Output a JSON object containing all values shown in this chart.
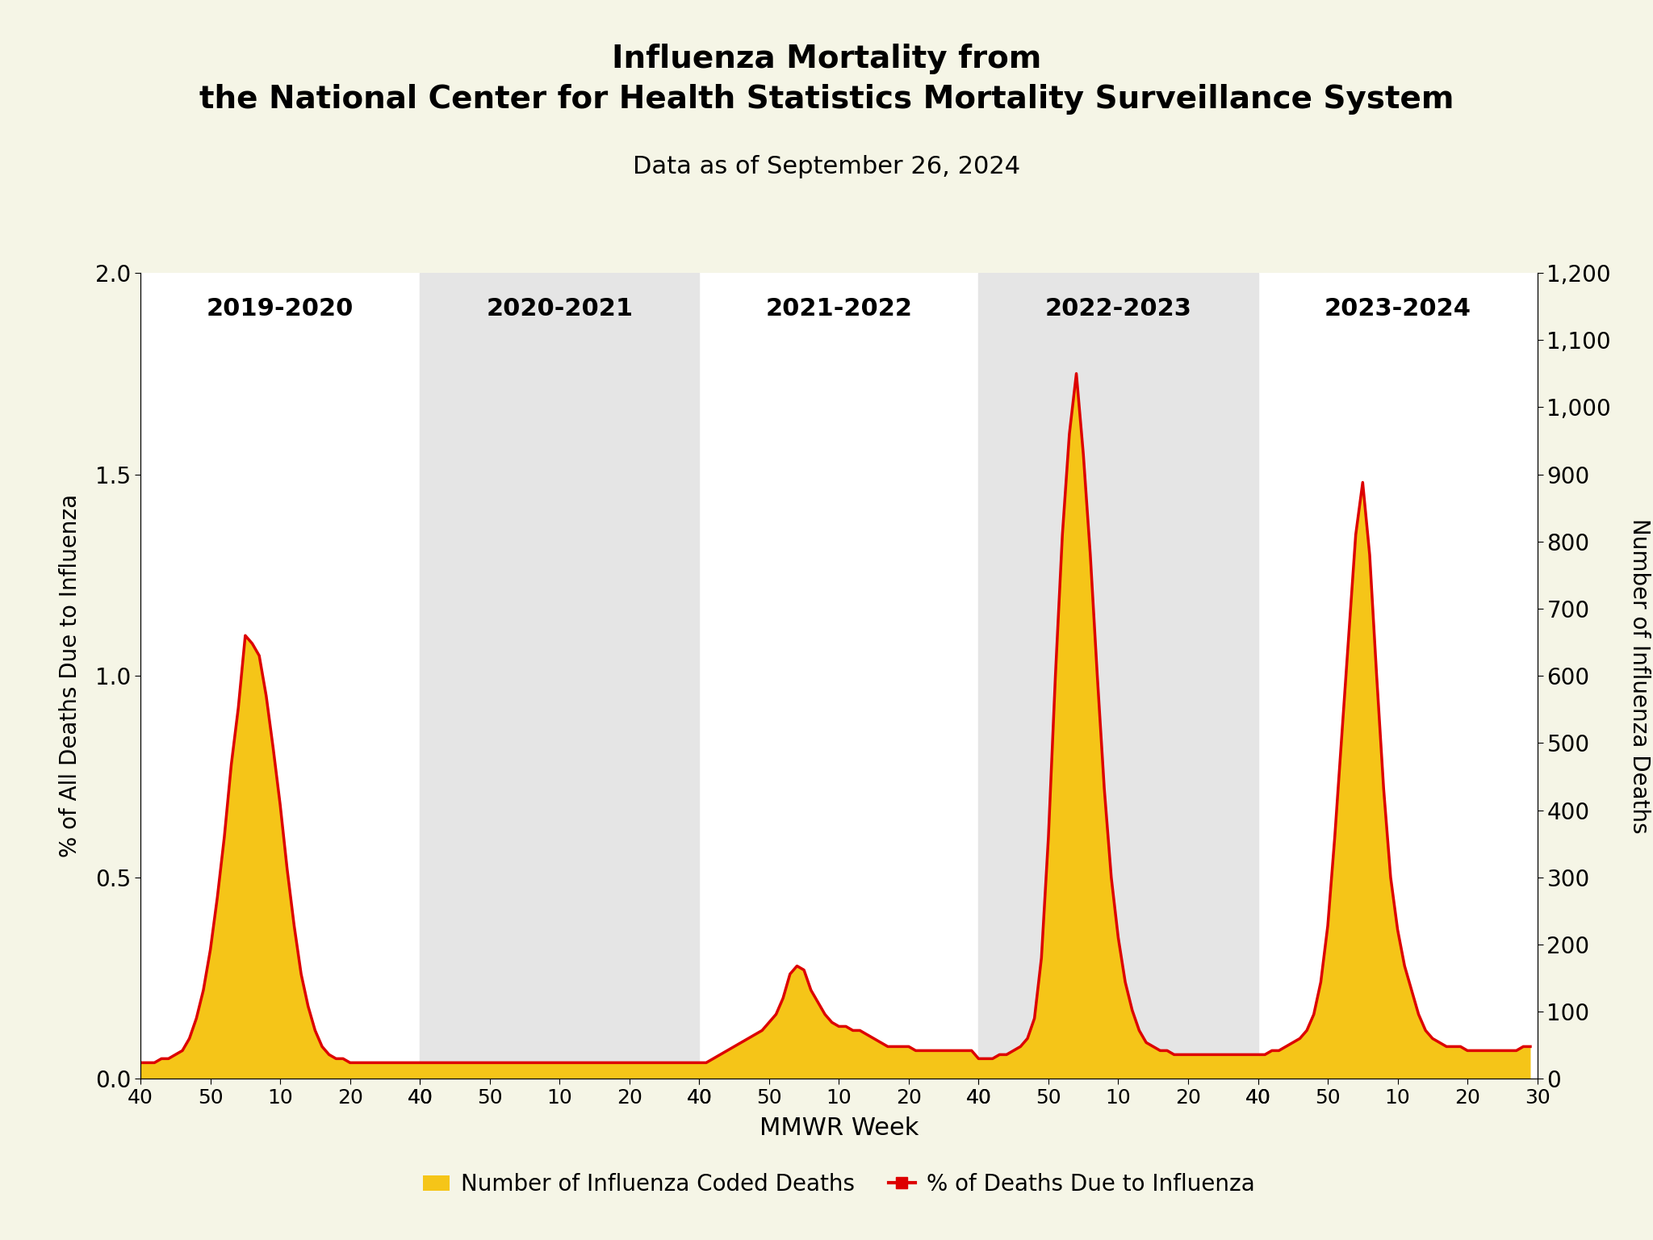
{
  "title": "Influenza Mortality from\nthe National Center for Health Statistics Mortality Surveillance System",
  "subtitle": "Data as of September 26, 2024",
  "xlabel": "MMWR Week",
  "ylabel_left": "% of All Deaths Due to Influenza",
  "ylabel_right": "Number of Influenza Deaths",
  "ylim_left": [
    0.0,
    2.0
  ],
  "ylim_right": [
    0,
    1200
  ],
  "yticks_left": [
    0.0,
    0.5,
    1.0,
    1.5,
    2.0
  ],
  "yticks_right": [
    0,
    100,
    200,
    300,
    400,
    500,
    600,
    700,
    800,
    900,
    1000,
    1100,
    1200
  ],
  "background_color": "#f5f5e6",
  "plot_bg_color": "#ffffff",
  "seasons": [
    "2019-2020",
    "2020-2021",
    "2021-2022",
    "2022-2023",
    "2023-2024"
  ],
  "season_shade": [
    false,
    true,
    false,
    true,
    false
  ],
  "shade_color": "#e5e5e5",
  "bar_color": "#f5c518",
  "line_color": "#dd0000",
  "line_width": 2.5,
  "xtick_labels": [
    "40",
    "50",
    "10",
    "20",
    "30"
  ],
  "weeks_per_season": 40,
  "pct_data": [
    0.04,
    0.04,
    0.04,
    0.05,
    0.05,
    0.06,
    0.07,
    0.1,
    0.15,
    0.22,
    0.32,
    0.45,
    0.6,
    0.78,
    0.92,
    1.1,
    1.08,
    1.05,
    0.95,
    0.82,
    0.68,
    0.52,
    0.38,
    0.26,
    0.18,
    0.12,
    0.08,
    0.06,
    0.05,
    0.05,
    0.04,
    0.04,
    0.04,
    0.04,
    0.04,
    0.04,
    0.04,
    0.04,
    0.04,
    0.04,
    0.04,
    0.04,
    0.04,
    0.04,
    0.04,
    0.04,
    0.04,
    0.04,
    0.04,
    0.04,
    0.04,
    0.04,
    0.04,
    0.04,
    0.04,
    0.04,
    0.04,
    0.04,
    0.04,
    0.04,
    0.04,
    0.04,
    0.04,
    0.04,
    0.04,
    0.04,
    0.04,
    0.04,
    0.04,
    0.04,
    0.04,
    0.04,
    0.04,
    0.04,
    0.04,
    0.04,
    0.04,
    0.04,
    0.04,
    0.04,
    0.04,
    0.04,
    0.05,
    0.06,
    0.07,
    0.08,
    0.09,
    0.1,
    0.11,
    0.12,
    0.14,
    0.16,
    0.2,
    0.26,
    0.28,
    0.27,
    0.22,
    0.19,
    0.16,
    0.14,
    0.13,
    0.13,
    0.12,
    0.12,
    0.11,
    0.1,
    0.09,
    0.08,
    0.08,
    0.08,
    0.08,
    0.07,
    0.07,
    0.07,
    0.07,
    0.07,
    0.07,
    0.07,
    0.07,
    0.07,
    0.05,
    0.05,
    0.05,
    0.06,
    0.06,
    0.07,
    0.08,
    0.1,
    0.15,
    0.3,
    0.6,
    1.0,
    1.35,
    1.6,
    1.75,
    1.55,
    1.3,
    1.0,
    0.72,
    0.5,
    0.35,
    0.24,
    0.17,
    0.12,
    0.09,
    0.08,
    0.07,
    0.07,
    0.06,
    0.06,
    0.06,
    0.06,
    0.06,
    0.06,
    0.06,
    0.06,
    0.06,
    0.06,
    0.06,
    0.06,
    0.06,
    0.06,
    0.07,
    0.07,
    0.08,
    0.09,
    0.1,
    0.12,
    0.16,
    0.24,
    0.38,
    0.6,
    0.85,
    1.1,
    1.35,
    1.48,
    1.3,
    1.0,
    0.72,
    0.5,
    0.37,
    0.28,
    0.22,
    0.16,
    0.12,
    0.1,
    0.09,
    0.08,
    0.08,
    0.08,
    0.07,
    0.07,
    0.07,
    0.07,
    0.07,
    0.07,
    0.07,
    0.07,
    0.08,
    0.08
  ],
  "count_data": [
    24,
    24,
    24,
    30,
    30,
    36,
    42,
    60,
    90,
    132,
    192,
    270,
    360,
    468,
    552,
    660,
    648,
    630,
    570,
    492,
    408,
    312,
    228,
    156,
    108,
    72,
    48,
    36,
    30,
    30,
    24,
    24,
    24,
    24,
    24,
    24,
    24,
    24,
    24,
    24,
    24,
    24,
    24,
    24,
    24,
    24,
    24,
    24,
    24,
    24,
    24,
    24,
    24,
    24,
    24,
    24,
    24,
    24,
    24,
    24,
    24,
    24,
    24,
    24,
    24,
    24,
    24,
    24,
    24,
    24,
    24,
    24,
    24,
    24,
    24,
    24,
    24,
    24,
    24,
    24,
    24,
    24,
    30,
    36,
    42,
    48,
    54,
    60,
    66,
    72,
    84,
    96,
    120,
    156,
    168,
    162,
    132,
    114,
    96,
    84,
    78,
    78,
    72,
    72,
    66,
    60,
    54,
    48,
    48,
    48,
    48,
    42,
    42,
    42,
    42,
    42,
    42,
    42,
    42,
    42,
    30,
    30,
    30,
    36,
    36,
    42,
    48,
    60,
    90,
    180,
    360,
    600,
    810,
    960,
    1050,
    930,
    780,
    600,
    432,
    300,
    210,
    144,
    102,
    72,
    54,
    48,
    42,
    42,
    36,
    36,
    36,
    36,
    36,
    36,
    36,
    36,
    36,
    36,
    36,
    36,
    36,
    36,
    42,
    42,
    48,
    54,
    60,
    72,
    96,
    144,
    228,
    360,
    510,
    660,
    810,
    890,
    780,
    600,
    432,
    300,
    222,
    168,
    132,
    96,
    72,
    60,
    54,
    48,
    48,
    48,
    42,
    42,
    42,
    42,
    42,
    42,
    42,
    42,
    48,
    48
  ]
}
